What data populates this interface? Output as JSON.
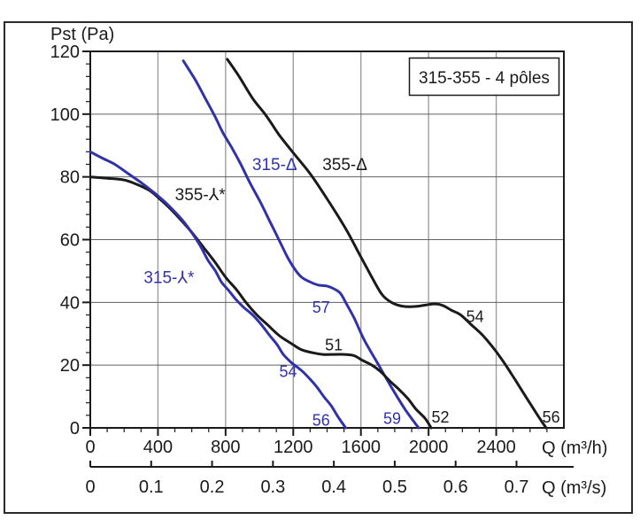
{
  "page": {
    "background": "#ffffff",
    "frame_color": "#2a2a2a"
  },
  "chart_data": {
    "type": "line",
    "title_box": "315-355 - 4 pôles",
    "grid": true,
    "colors": {
      "blue_curve": "#3232a8",
      "black_curve": "#1a1a1a",
      "grid_vertical": "#9e9e9e",
      "grid_horizontal": "#606060"
    },
    "y_axis": {
      "title": "Pst (Pa)",
      "min": 0,
      "max": 120,
      "major_step": 20,
      "minor_step": 4,
      "ticks": [
        0,
        20,
        40,
        60,
        80,
        100,
        120
      ]
    },
    "x_axis": {
      "title": "Q (m³/h)",
      "min": 0,
      "max": 2800,
      "major_step": 400,
      "minor_step": 100,
      "ticks": [
        0,
        400,
        800,
        1200,
        1600,
        2000,
        2400
      ]
    },
    "x2_axis": {
      "title": "Q (m³/s)",
      "min": 0,
      "max": 0.78,
      "major_step": 0.1,
      "ticks": [
        0,
        0.1,
        0.2,
        0.3,
        0.4,
        0.5,
        0.6,
        0.7
      ]
    },
    "series": [
      {
        "name": "355-Δ",
        "color": "#1a1a1a",
        "points": [
          [
            810,
            117.5
          ],
          [
            880,
            112
          ],
          [
            960,
            105
          ],
          [
            1040,
            99.5
          ],
          [
            1115,
            93.5
          ],
          [
            1195,
            88
          ],
          [
            1300,
            81
          ],
          [
            1400,
            73
          ],
          [
            1510,
            63.5
          ],
          [
            1585,
            56
          ],
          [
            1665,
            48
          ],
          [
            1725,
            42.5
          ],
          [
            1780,
            40
          ],
          [
            1845,
            38.8
          ],
          [
            1925,
            38.7
          ],
          [
            2030,
            39.5
          ],
          [
            2085,
            39
          ],
          [
            2135,
            37.5
          ],
          [
            2190,
            36
          ],
          [
            2250,
            33
          ],
          [
            2320,
            29.5
          ],
          [
            2390,
            25
          ],
          [
            2450,
            20.5
          ],
          [
            2510,
            15.5
          ],
          [
            2580,
            9.5
          ],
          [
            2645,
            4
          ],
          [
            2695,
            0
          ]
        ]
      },
      {
        "name": "315-Δ",
        "color": "#3232a8",
        "points": [
          [
            550,
            117
          ],
          [
            620,
            111
          ],
          [
            680,
            105
          ],
          [
            735,
            99.5
          ],
          [
            785,
            94
          ],
          [
            840,
            89
          ],
          [
            890,
            84
          ],
          [
            945,
            78
          ],
          [
            1010,
            71.5
          ],
          [
            1060,
            66
          ],
          [
            1115,
            60
          ],
          [
            1165,
            54.5
          ],
          [
            1210,
            50.5
          ],
          [
            1250,
            48
          ],
          [
            1300,
            46.5
          ],
          [
            1350,
            45.5
          ],
          [
            1400,
            45.2
          ],
          [
            1445,
            44.2
          ],
          [
            1480,
            42.8
          ],
          [
            1520,
            39
          ],
          [
            1560,
            35
          ],
          [
            1620,
            28
          ],
          [
            1700,
            20.5
          ],
          [
            1780,
            13
          ],
          [
            1860,
            6
          ],
          [
            1941,
            0
          ]
        ]
      },
      {
        "name": "355-⅄*",
        "color": "#1a1a1a",
        "points": [
          [
            0,
            80
          ],
          [
            95,
            79.6
          ],
          [
            200,
            79
          ],
          [
            280,
            77.5
          ],
          [
            355,
            75.5
          ],
          [
            410,
            73
          ],
          [
            470,
            70
          ],
          [
            540,
            66
          ],
          [
            605,
            62
          ],
          [
            670,
            57.5
          ],
          [
            735,
            53
          ],
          [
            800,
            48
          ],
          [
            865,
            44
          ],
          [
            920,
            40
          ],
          [
            985,
            36
          ],
          [
            1045,
            33
          ],
          [
            1115,
            29.5
          ],
          [
            1185,
            27
          ],
          [
            1245,
            25
          ],
          [
            1310,
            24
          ],
          [
            1375,
            23.4
          ],
          [
            1445,
            23.4
          ],
          [
            1505,
            23.4
          ],
          [
            1560,
            23
          ],
          [
            1610,
            21.5
          ],
          [
            1665,
            20
          ],
          [
            1715,
            18
          ],
          [
            1770,
            15
          ],
          [
            1820,
            12.5
          ],
          [
            1875,
            9.5
          ],
          [
            1925,
            6
          ],
          [
            1980,
            3
          ],
          [
            2015,
            0
          ]
        ]
      },
      {
        "name": "315-⅄*",
        "color": "#3232a8",
        "points": [
          [
            0,
            88
          ],
          [
            70,
            86
          ],
          [
            145,
            84
          ],
          [
            225,
            81
          ],
          [
            305,
            78
          ],
          [
            365,
            75.5
          ],
          [
            410,
            73.5
          ],
          [
            470,
            70.5
          ],
          [
            540,
            66.5
          ],
          [
            590,
            63
          ],
          [
            645,
            58.5
          ],
          [
            695,
            53.5
          ],
          [
            740,
            50
          ],
          [
            775,
            46.5
          ],
          [
            815,
            44
          ],
          [
            860,
            41
          ],
          [
            905,
            38.5
          ],
          [
            960,
            36
          ],
          [
            1010,
            33
          ],
          [
            1060,
            29.5
          ],
          [
            1105,
            26.5
          ],
          [
            1140,
            23.5
          ],
          [
            1185,
            21
          ],
          [
            1220,
            19.5
          ],
          [
            1255,
            18
          ],
          [
            1300,
            15.5
          ],
          [
            1340,
            13
          ],
          [
            1380,
            10
          ],
          [
            1425,
            7
          ],
          [
            1465,
            3.5
          ],
          [
            1510,
            0
          ]
        ]
      }
    ],
    "annotations": [
      {
        "text": "315-Δ",
        "q": 1090,
        "p": 84,
        "color": "#3232a8",
        "fs": 19
      },
      {
        "text": "355-Δ",
        "q": 1505,
        "p": 84,
        "color": "#1a1a1a",
        "fs": 19
      },
      {
        "text": "355-⅄*",
        "q": 650,
        "p": 74.5,
        "color": "#1a1a1a",
        "fs": 19
      },
      {
        "text": "315-⅄*",
        "q": 465,
        "p": 48,
        "color": "#3232a8",
        "fs": 19
      },
      {
        "text": "57",
        "q": 1365,
        "p": 38.5,
        "color": "#3232a8",
        "fs": 18
      },
      {
        "text": "51",
        "q": 1440,
        "p": 26.5,
        "color": "#1a1a1a",
        "fs": 18
      },
      {
        "text": "54",
        "q": 2275,
        "p": 35.5,
        "color": "#1a1a1a",
        "fs": 18
      },
      {
        "text": "54",
        "q": 1170,
        "p": 18,
        "color": "#3232a8",
        "fs": 18
      },
      {
        "text": "56",
        "q": 1365,
        "p": 2.5,
        "color": "#3232a8",
        "fs": 18
      },
      {
        "text": "59",
        "q": 1785,
        "p": 3,
        "color": "#3232a8",
        "fs": 18
      },
      {
        "text": "52",
        "q": 2070,
        "p": 3.5,
        "color": "#1a1a1a",
        "fs": 18
      },
      {
        "text": "56",
        "q": 2725,
        "p": 3.5,
        "color": "#1a1a1a",
        "fs": 18
      }
    ]
  }
}
